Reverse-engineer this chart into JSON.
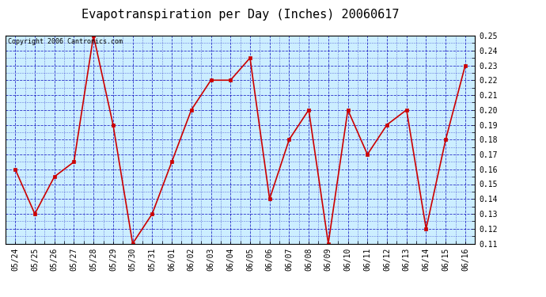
{
  "title": "Evapotranspiration per Day (Inches) 20060617",
  "copyright": "Copyright 2006 Cantronics.com",
  "dates": [
    "05/24",
    "05/25",
    "05/26",
    "05/27",
    "05/28",
    "05/29",
    "05/30",
    "05/31",
    "06/01",
    "06/02",
    "06/03",
    "06/04",
    "06/05",
    "06/06",
    "06/07",
    "06/08",
    "06/09",
    "06/10",
    "06/11",
    "06/12",
    "06/13",
    "06/14",
    "06/15",
    "06/16"
  ],
  "values": [
    0.16,
    0.13,
    0.155,
    0.165,
    0.25,
    0.19,
    0.11,
    0.13,
    0.165,
    0.2,
    0.22,
    0.22,
    0.235,
    0.14,
    0.18,
    0.2,
    0.11,
    0.2,
    0.17,
    0.19,
    0.2,
    0.12,
    0.18,
    0.23
  ],
  "line_color": "#cc0000",
  "marker_color": "#cc0000",
  "plot_bg_color": "#cceeff",
  "outer_bg_color": "#ffffff",
  "grid_color": "#0000bb",
  "title_fontsize": 11,
  "copyright_fontsize": 6,
  "tick_fontsize": 7,
  "ylim": [
    0.11,
    0.25
  ],
  "yticks": [
    0.11,
    0.12,
    0.13,
    0.14,
    0.15,
    0.16,
    0.17,
    0.18,
    0.19,
    0.2,
    0.21,
    0.22,
    0.23,
    0.24,
    0.25
  ]
}
